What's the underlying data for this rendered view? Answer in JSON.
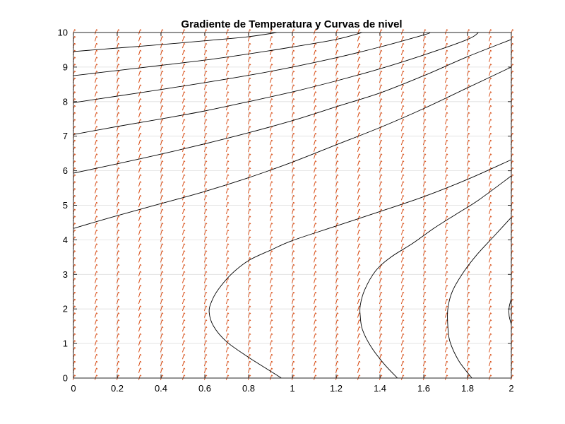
{
  "chart_data": {
    "type": "contour+quiver",
    "title": "Gradiente de Temperatura y Curvas de nivel",
    "xlabel": "",
    "ylabel": "",
    "xlim": [
      0,
      2
    ],
    "ylim": [
      0,
      10
    ],
    "xticks": [
      "0",
      "0.2",
      "0.4",
      "0.6",
      "0.8",
      "1",
      "1.2",
      "1.4",
      "1.6",
      "1.8",
      "2"
    ],
    "yticks": [
      "0",
      "1",
      "2",
      "3",
      "4",
      "5",
      "6",
      "7",
      "8",
      "9",
      "10"
    ],
    "grid": true,
    "box": true,
    "colors": {
      "contour": "#000000",
      "quiver": "#d9531e",
      "grid": "#dddddd",
      "axes": "#262626"
    },
    "quiver": {
      "x_start": 0,
      "x_step": 0.1,
      "x_end": 2,
      "y_start": 0,
      "y_step": 0.2,
      "y_end": 10,
      "direction": "nearly vertical, slight rightward tilt"
    },
    "contours": [
      {
        "points": [
          [
            0,
            4.33
          ],
          [
            0.2,
            4.7
          ],
          [
            0.4,
            5.05
          ],
          [
            0.6,
            5.4
          ],
          [
            0.8,
            5.8
          ],
          [
            1.0,
            6.25
          ],
          [
            1.2,
            6.75
          ],
          [
            1.4,
            7.25
          ],
          [
            1.6,
            7.8
          ],
          [
            1.8,
            8.4
          ],
          [
            2.0,
            9.0
          ]
        ]
      },
      {
        "points": [
          [
            0,
            5.93
          ],
          [
            0.2,
            6.2
          ],
          [
            0.4,
            6.48
          ],
          [
            0.6,
            6.78
          ],
          [
            0.8,
            7.1
          ],
          [
            1.0,
            7.45
          ],
          [
            1.2,
            7.85
          ],
          [
            1.4,
            8.25
          ],
          [
            1.6,
            8.75
          ],
          [
            1.8,
            9.3
          ],
          [
            2.0,
            9.8
          ]
        ]
      },
      {
        "points": [
          [
            0,
            7.05
          ],
          [
            0.2,
            7.28
          ],
          [
            0.4,
            7.5
          ],
          [
            0.6,
            7.73
          ],
          [
            0.8,
            8.0
          ],
          [
            1.0,
            8.28
          ],
          [
            1.2,
            8.6
          ],
          [
            1.4,
            8.95
          ],
          [
            1.6,
            9.35
          ],
          [
            1.8,
            9.8
          ],
          [
            1.85,
            10.0
          ]
        ]
      },
      {
        "points": [
          [
            0,
            7.97
          ],
          [
            0.2,
            8.16
          ],
          [
            0.4,
            8.35
          ],
          [
            0.6,
            8.55
          ],
          [
            0.8,
            8.76
          ],
          [
            1.0,
            9.0
          ],
          [
            1.2,
            9.27
          ],
          [
            1.4,
            9.58
          ],
          [
            1.6,
            9.93
          ],
          [
            1.63,
            10.0
          ]
        ]
      },
      {
        "points": [
          [
            0,
            8.75
          ],
          [
            0.2,
            8.9
          ],
          [
            0.4,
            9.05
          ],
          [
            0.6,
            9.2
          ],
          [
            0.8,
            9.38
          ],
          [
            1.0,
            9.58
          ],
          [
            1.2,
            9.8
          ],
          [
            1.32,
            10.0
          ]
        ]
      },
      {
        "points": [
          [
            0,
            9.45
          ],
          [
            0.2,
            9.55
          ],
          [
            0.4,
            9.65
          ],
          [
            0.6,
            9.76
          ],
          [
            0.8,
            9.88
          ],
          [
            0.93,
            10.0
          ]
        ]
      },
      {
        "points": [
          [
            0.95,
            0
          ],
          [
            0.9,
            0.2
          ],
          [
            0.8,
            0.6
          ],
          [
            0.7,
            1.05
          ],
          [
            0.64,
            1.5
          ],
          [
            0.62,
            1.9
          ],
          [
            0.63,
            2.2
          ],
          [
            0.66,
            2.55
          ],
          [
            0.72,
            3.0
          ],
          [
            0.8,
            3.4
          ],
          [
            0.9,
            3.7
          ],
          [
            1.0,
            3.98
          ],
          [
            1.2,
            4.4
          ],
          [
            1.4,
            4.82
          ],
          [
            1.6,
            5.25
          ],
          [
            1.8,
            5.75
          ],
          [
            2.0,
            6.32
          ]
        ]
      },
      {
        "points": [
          [
            1.48,
            0
          ],
          [
            1.42,
            0.4
          ],
          [
            1.36,
            0.9
          ],
          [
            1.32,
            1.4
          ],
          [
            1.31,
            1.8
          ],
          [
            1.31,
            2.1
          ],
          [
            1.33,
            2.55
          ],
          [
            1.38,
            3.1
          ],
          [
            1.45,
            3.5
          ],
          [
            1.55,
            3.9
          ],
          [
            1.65,
            4.35
          ],
          [
            1.75,
            4.75
          ],
          [
            1.85,
            5.15
          ],
          [
            2.0,
            5.85
          ]
        ]
      },
      {
        "points": [
          [
            1.82,
            0
          ],
          [
            1.76,
            0.5
          ],
          [
            1.72,
            1.05
          ],
          [
            1.71,
            1.5
          ],
          [
            1.71,
            2.0
          ],
          [
            1.73,
            2.5
          ],
          [
            1.78,
            3.05
          ],
          [
            1.84,
            3.55
          ],
          [
            1.92,
            4.1
          ],
          [
            2.0,
            4.65
          ]
        ]
      },
      {
        "points": [
          [
            2.0,
            1.55
          ],
          [
            1.99,
            1.8
          ],
          [
            1.99,
            2.05
          ],
          [
            2.0,
            2.3
          ]
        ]
      }
    ]
  }
}
